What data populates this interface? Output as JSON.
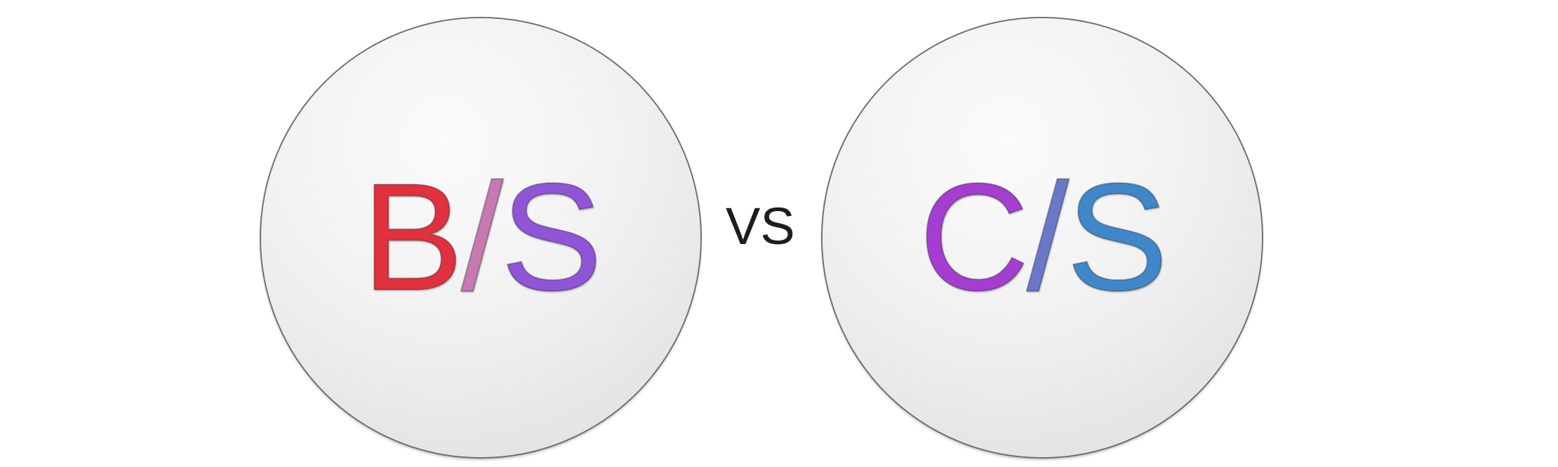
{
  "left_emblem": {
    "char1": "B",
    "char2": "/",
    "char3": "S"
  },
  "separator": {
    "text": "VS"
  },
  "right_emblem": {
    "char1": "C",
    "char2": "/",
    "char3": "S"
  },
  "colors": {
    "b": "#e0313f",
    "left_slash": "#c779b2",
    "left_s": "#8f55d6",
    "c": "#a43ed0",
    "right_slash": "#6a78c9",
    "right_s": "#3f87c8",
    "circle_fill": "#f1f1f1",
    "circle_outline": "#6e6e6e",
    "vs_text": "#1d1d1d"
  }
}
